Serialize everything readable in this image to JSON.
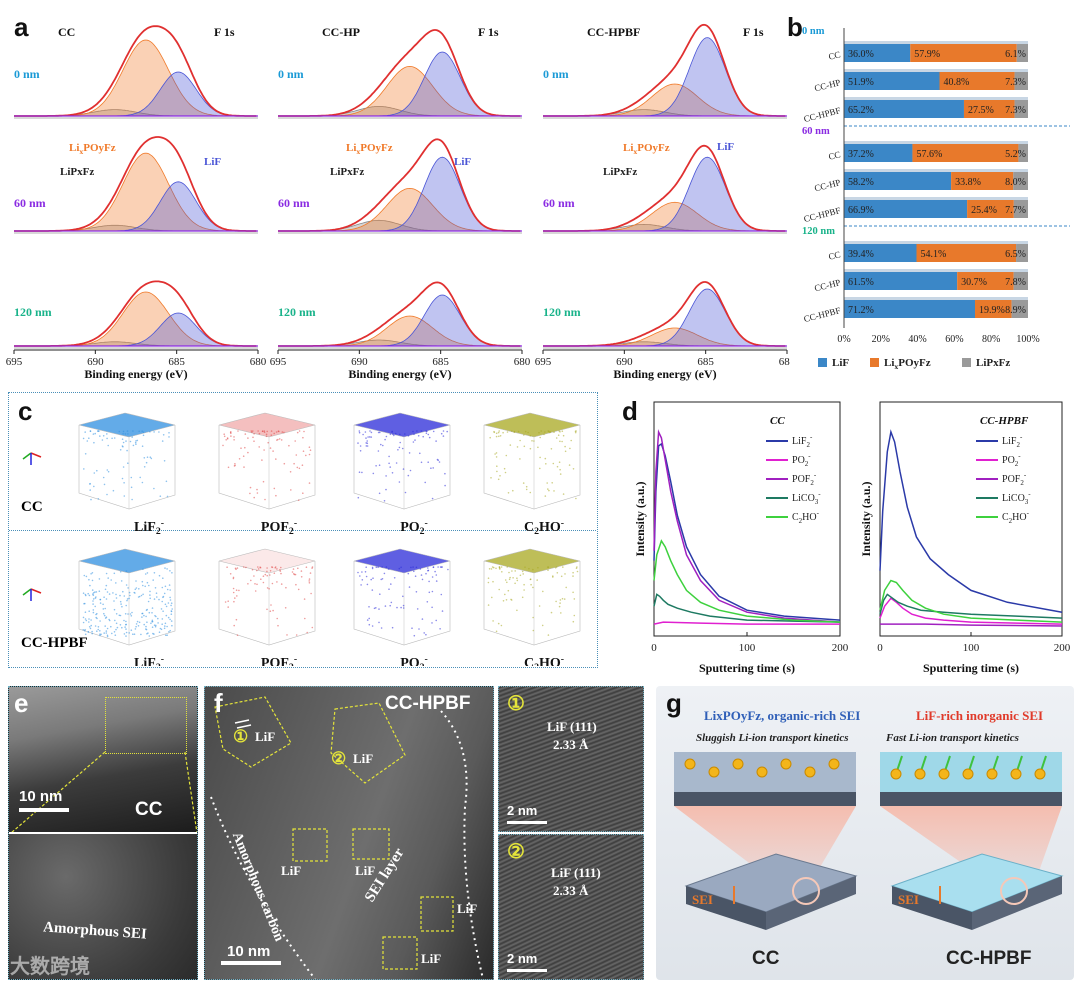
{
  "panel_labels": {
    "a": "a",
    "b": "b",
    "c": "c",
    "d": "d",
    "e": "e",
    "f": "f",
    "g": "g"
  },
  "panel_a": {
    "samples": [
      "CC",
      "CC-HP",
      "CC-HPBF"
    ],
    "element": "F 1s",
    "depths": [
      "0 nm",
      "60 nm",
      "120 nm"
    ],
    "peak_labels": {
      "lipof": "LixPOyFz",
      "lif": "LiF",
      "lipf": "LiPxFz"
    },
    "x_ticks": [
      "695",
      "690",
      "685",
      "680"
    ],
    "x_label": "Binding energy (eV)",
    "colors": {
      "lif": "#4a55d6",
      "lipof": "#f07a2a",
      "lipf": "#888888",
      "envelope": "#e03030",
      "baseline": "#8a2be2",
      "depth0": "#1a9ad6",
      "depth60": "#8a2be2",
      "depth120": "#19b38a"
    }
  },
  "chart_data": [
    {
      "type": "bar",
      "orientation": "horizontal-stacked-100",
      "groups": [
        {
          "depth": "0 nm",
          "rows": [
            {
              "sample": "CC",
              "values": [
                36.0,
                57.9,
                6.1
              ],
              "labels": [
                "36.0%",
                "57.9%",
                "6.1%"
              ]
            },
            {
              "sample": "CC-HP",
              "values": [
                51.9,
                40.8,
                7.3
              ],
              "labels": [
                "51.9%",
                "40.8%",
                "7.3%"
              ]
            },
            {
              "sample": "CC-HPBF",
              "values": [
                65.2,
                27.5,
                7.3
              ],
              "labels": [
                "65.2%",
                "27.5%",
                "7.3%"
              ]
            }
          ]
        },
        {
          "depth": "60 nm",
          "rows": [
            {
              "sample": "CC",
              "values": [
                37.2,
                57.6,
                5.2
              ],
              "labels": [
                "37.2%",
                "57.6%",
                "5.2%"
              ]
            },
            {
              "sample": "CC-HP",
              "values": [
                58.2,
                33.8,
                8.0
              ],
              "labels": [
                "58.2%",
                "33.8%",
                "8.0%"
              ]
            },
            {
              "sample": "CC-HPBF",
              "values": [
                66.9,
                25.4,
                7.7
              ],
              "labels": [
                "66.9%",
                "25.4%",
                "7.7%"
              ]
            }
          ]
        },
        {
          "depth": "120 nm",
          "rows": [
            {
              "sample": "CC",
              "values": [
                39.4,
                54.1,
                6.5
              ],
              "labels": [
                "39.4%",
                "54.1%",
                "6.5%"
              ]
            },
            {
              "sample": "CC-HP",
              "values": [
                61.5,
                30.7,
                7.8
              ],
              "labels": [
                "61.5%",
                "30.7%",
                "7.8%"
              ]
            },
            {
              "sample": "CC-HPBF",
              "values": [
                71.2,
                19.9,
                8.9
              ],
              "labels": [
                "71.2%",
                "19.9%",
                "8.9%"
              ]
            }
          ]
        }
      ],
      "series": [
        {
          "name": "LiF",
          "color": "#3b87c7"
        },
        {
          "name": "LixPOyFz",
          "color": "#e8792b"
        },
        {
          "name": "LiPxFz",
          "color": "#9a9a9a"
        }
      ],
      "x_ticks": [
        "0%",
        "20%",
        "40%",
        "60%",
        "80%",
        "100%"
      ],
      "xlim": [
        0,
        100
      ],
      "depth_colors": [
        "#1a9ad6",
        "#8a2be2",
        "#19b38a"
      ]
    },
    {
      "type": "line",
      "title": "CC",
      "xlabel": "Sputtering time (s)",
      "ylabel": "Intensity (a.u.)",
      "xlim": [
        0,
        200
      ],
      "x_ticks": [
        "0",
        "100",
        "200"
      ],
      "series": [
        {
          "name": "LiF2-",
          "color": "#2b3aa8",
          "x": [
            0,
            2,
            5,
            8,
            12,
            18,
            25,
            35,
            50,
            70,
            100,
            140,
            200
          ],
          "y": [
            0.35,
            0.7,
            0.93,
            0.94,
            0.88,
            0.75,
            0.58,
            0.42,
            0.28,
            0.17,
            0.1,
            0.07,
            0.05
          ]
        },
        {
          "name": "PO2-",
          "color": "#e020d0",
          "x": [
            0,
            10,
            50,
            100,
            150,
            200
          ],
          "y": [
            0.03,
            0.04,
            0.035,
            0.03,
            0.03,
            0.03
          ]
        },
        {
          "name": "POF2-",
          "color": "#a020c0",
          "x": [
            0,
            2,
            5,
            8,
            12,
            18,
            25,
            35,
            50,
            70,
            100,
            140,
            200
          ],
          "y": [
            0.4,
            0.8,
            1.0,
            0.97,
            0.86,
            0.7,
            0.55,
            0.38,
            0.25,
            0.15,
            0.09,
            0.06,
            0.04
          ]
        },
        {
          "name": "LiCO3-",
          "color": "#1e7a62",
          "x": [
            0,
            3,
            6,
            10,
            15,
            25,
            40,
            60,
            100,
            150,
            200
          ],
          "y": [
            0.12,
            0.18,
            0.17,
            0.15,
            0.13,
            0.11,
            0.09,
            0.07,
            0.05,
            0.045,
            0.04
          ]
        },
        {
          "name": "C2HO-",
          "color": "#3ed13e",
          "x": [
            0,
            3,
            8,
            12,
            18,
            25,
            35,
            50,
            70,
            100,
            150,
            200
          ],
          "y": [
            0.25,
            0.38,
            0.45,
            0.42,
            0.35,
            0.28,
            0.2,
            0.14,
            0.1,
            0.07,
            0.05,
            0.04
          ]
        }
      ]
    },
    {
      "type": "line",
      "title": "CC-HPBF",
      "xlabel": "Sputtering time (s)",
      "ylabel": "Intensity (a.u.)",
      "xlim": [
        0,
        200
      ],
      "x_ticks": [
        "0",
        "100",
        "200"
      ],
      "series": [
        {
          "name": "LiF2-",
          "color": "#2b3aa8",
          "x": [
            0,
            3,
            8,
            12,
            16,
            22,
            30,
            40,
            55,
            75,
            100,
            140,
            200
          ],
          "y": [
            0.3,
            0.6,
            0.9,
            1.0,
            0.95,
            0.8,
            0.62,
            0.47,
            0.36,
            0.28,
            0.2,
            0.14,
            0.09
          ]
        },
        {
          "name": "PO2-",
          "color": "#e020d0",
          "x": [
            0,
            5,
            12,
            18,
            25,
            35,
            50,
            70,
            100,
            150,
            200
          ],
          "y": [
            0.06,
            0.12,
            0.16,
            0.14,
            0.11,
            0.08,
            0.06,
            0.05,
            0.04,
            0.035,
            0.03
          ]
        },
        {
          "name": "POF2-",
          "color": "#a020c0",
          "x": [
            0,
            50,
            100,
            200
          ],
          "y": [
            0.03,
            0.03,
            0.025,
            0.02
          ]
        },
        {
          "name": "LiCO3-",
          "color": "#1e7a62",
          "x": [
            0,
            4,
            8,
            14,
            20,
            30,
            45,
            70,
            100,
            150,
            200
          ],
          "y": [
            0.08,
            0.15,
            0.18,
            0.16,
            0.14,
            0.12,
            0.1,
            0.09,
            0.08,
            0.07,
            0.06
          ]
        },
        {
          "name": "C2HO-",
          "color": "#3ed13e",
          "x": [
            0,
            5,
            12,
            18,
            25,
            35,
            50,
            70,
            100,
            150,
            200
          ],
          "y": [
            0.1,
            0.2,
            0.25,
            0.24,
            0.2,
            0.15,
            0.11,
            0.08,
            0.06,
            0.05,
            0.04
          ]
        }
      ]
    }
  ],
  "panel_c": {
    "rows": [
      "CC",
      "CC-HPBF"
    ],
    "species": [
      "LiF2-",
      "POF2-",
      "PO2-",
      "C2HO-"
    ],
    "colors": [
      "#2f8fe0",
      "#e04848",
      "#2a2ad8",
      "#a8a820"
    ]
  },
  "panel_d": {
    "legend": [
      "LiF2-",
      "PO2-",
      "POF2-",
      "LiCO3-",
      "C2HO-"
    ]
  },
  "panel_e": {
    "scale": "10 nm",
    "sample": "CC",
    "caption": "Amorphous SEI"
  },
  "panel_f": {
    "title": "CC-HPBF",
    "scale": "10 nm",
    "region_carbon": "Amorphous carbon",
    "region_sei": "SEI layer",
    "lif_label": "LiF",
    "marker1": "①",
    "marker2": "②",
    "inset_label": "LiF (111)",
    "inset_spacing": "2.33 Å",
    "inset_scale": "2 nm"
  },
  "panel_g": {
    "left_title": "LixPOyFz, organic-rich SEI",
    "left_sub": "Sluggish Li-ion transport kinetics",
    "right_title": "LiF-rich inorganic SEI",
    "right_sub": "Fast Li-ion transport kinetics",
    "sei": "SEI",
    "left_label": "CC",
    "right_label": "CC-HPBF"
  },
  "watermark": "大数跨境"
}
